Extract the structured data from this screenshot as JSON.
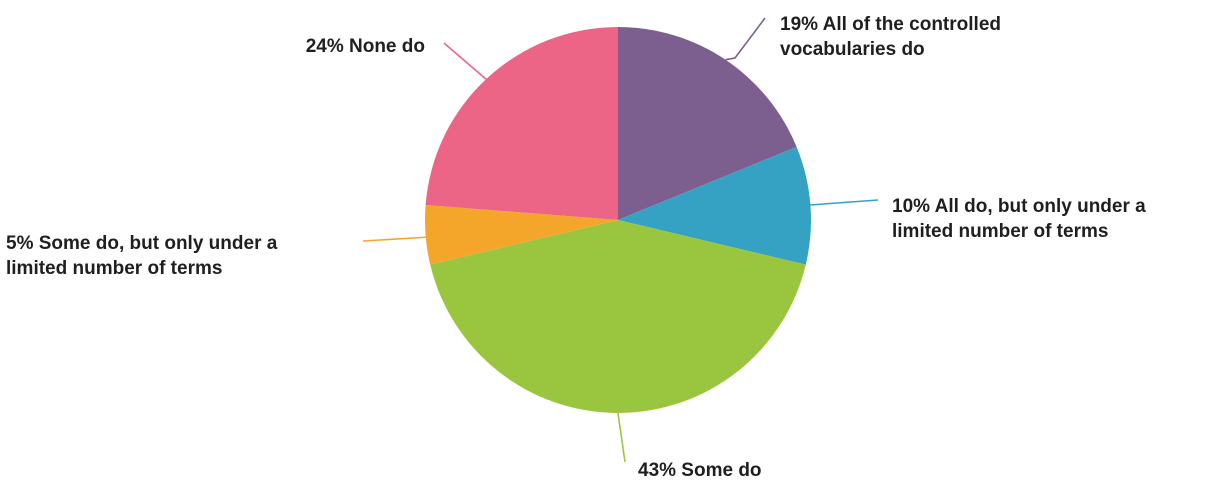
{
  "chart_data": {
    "type": "pie",
    "title": "",
    "legend": "none",
    "slices": [
      {
        "value": 19,
        "pct_label": "19%",
        "label_lines": [
          "All of the controlled",
          "vocabularies do"
        ],
        "color": "#7d5f8f"
      },
      {
        "value": 10,
        "pct_label": "10%",
        "label_lines": [
          "All do, but only under a",
          "limited number of terms"
        ],
        "color": "#35a2c4"
      },
      {
        "value": 43,
        "pct_label": "43%",
        "label_lines": [
          "Some do"
        ],
        "color": "#9ac63f"
      },
      {
        "value": 5,
        "pct_label": "5%",
        "label_lines": [
          "Some do, but only under a",
          "limited number of terms"
        ],
        "color": "#f3a62a"
      },
      {
        "value": 24,
        "pct_label": "24%",
        "label_lines": [
          "None do"
        ],
        "color": "#ec6587"
      }
    ]
  }
}
